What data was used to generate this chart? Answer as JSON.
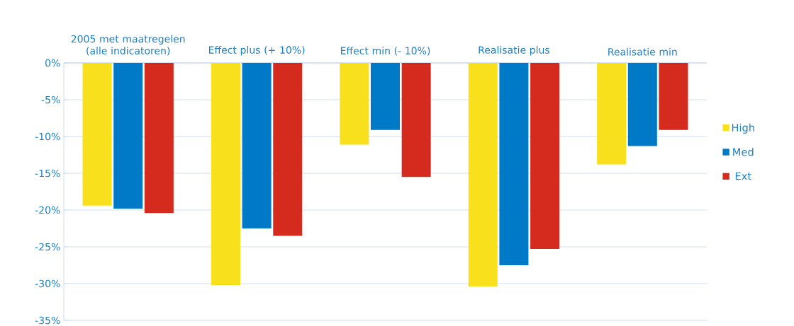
{
  "chart_data": {
    "type": "bar",
    "categories": [
      "2005 met maatregelen (alle indicatoren)",
      "Effect plus (+ 10%)",
      "Effect min (- 10%)",
      "Realisatie plus",
      "Realisatie min"
    ],
    "series": [
      {
        "name": "High",
        "color": "#f8e11c",
        "values": [
          -19.4,
          -30.2,
          -11.1,
          -30.4,
          -13.8
        ]
      },
      {
        "name": "Med",
        "color": "#0079c6",
        "values": [
          -19.8,
          -22.5,
          -9.1,
          -27.5,
          -11.3
        ]
      },
      {
        "name": "Ext",
        "color": "#d52b1e",
        "values": [
          -20.4,
          -23.5,
          -15.5,
          -25.3,
          -9.1
        ]
      }
    ],
    "ylim": [
      -35,
      0
    ],
    "yticks": [
      {
        "value": -35,
        "label": "-35%"
      },
      {
        "value": -30,
        "label": "-30%"
      },
      {
        "value": -25,
        "label": "-25%"
      },
      {
        "value": -20,
        "label": "-20%"
      },
      {
        "value": -15,
        "label": "-15%"
      },
      {
        "value": -10,
        "label": "-10%"
      },
      {
        "value": -5,
        "label": "-5%"
      },
      {
        "value": 0,
        "label": "0%"
      }
    ],
    "grid": "y",
    "legend": "right"
  }
}
